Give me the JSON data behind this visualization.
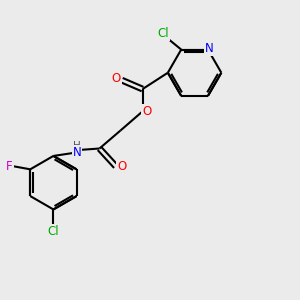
{
  "background_color": "#ebebeb",
  "bond_color": "#000000",
  "atom_colors": {
    "N": "#0000ff",
    "O": "#ff0000",
    "Cl": "#00aa00",
    "F": "#cc00cc",
    "H": "#555555",
    "C": "#000000"
  },
  "figsize": [
    3.0,
    3.0
  ],
  "dpi": 100
}
